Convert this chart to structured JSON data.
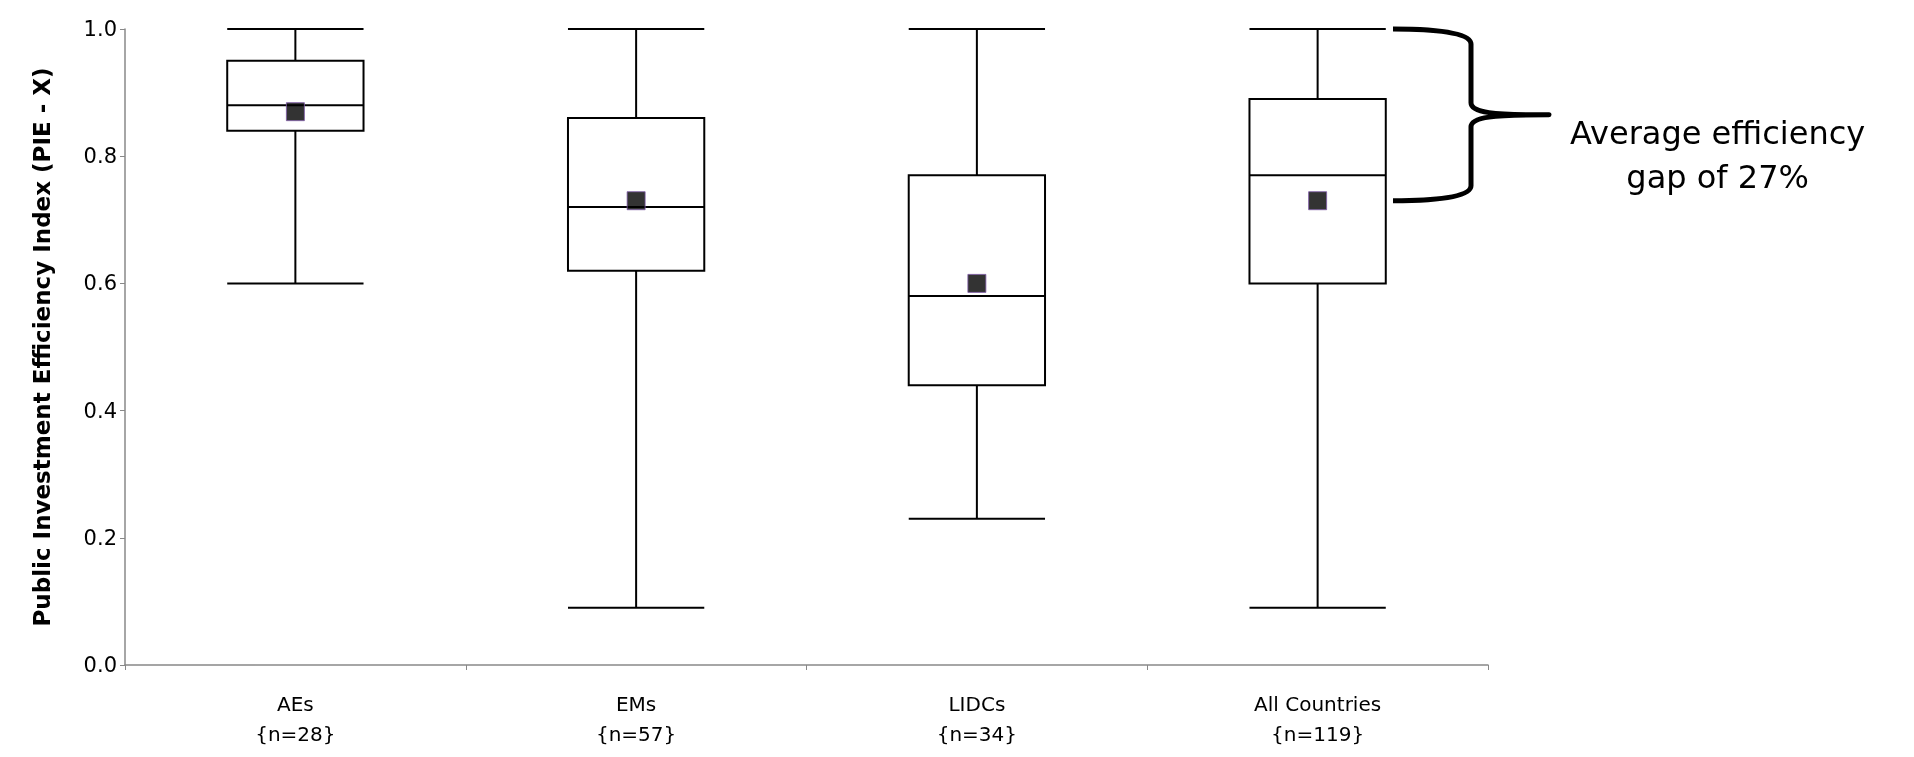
{
  "chart_data": {
    "type": "box",
    "ylabel": "Public Investment Efficiency Index (PIE - X)",
    "categories": [
      "AEs\n{n=28}",
      "EMs\n{n=57}",
      "LIDCs\n{n=34}",
      "All Countries\n{n=119}"
    ],
    "boxes": [
      {
        "low": 0.6,
        "q1": 0.84,
        "median": 0.88,
        "q3": 0.95,
        "high": 1.0,
        "mean": 0.87
      },
      {
        "low": 0.09,
        "q1": 0.62,
        "median": 0.72,
        "q3": 0.86,
        "high": 1.0,
        "mean": 0.73
      },
      {
        "low": 0.23,
        "q1": 0.44,
        "median": 0.58,
        "q3": 0.77,
        "high": 1.0,
        "mean": 0.6
      },
      {
        "low": 0.09,
        "q1": 0.6,
        "median": 0.77,
        "q3": 0.89,
        "high": 1.0,
        "mean": 0.73
      }
    ],
    "color": "#000000",
    "marker": "square",
    "ylim": [
      0,
      1
    ],
    "yticks": [
      {
        "value": 0,
        "label": "0.0"
      },
      {
        "value": 0.2,
        "label": "0.2"
      },
      {
        "value": 0.4,
        "label": "0.4"
      },
      {
        "value": 0.6,
        "label": "0.6"
      },
      {
        "value": 0.8,
        "label": "0.8"
      },
      {
        "value": 1,
        "label": "1.0"
      }
    ],
    "grid": false,
    "annotations": [
      "Average efficiency gap of 27%"
    ]
  }
}
